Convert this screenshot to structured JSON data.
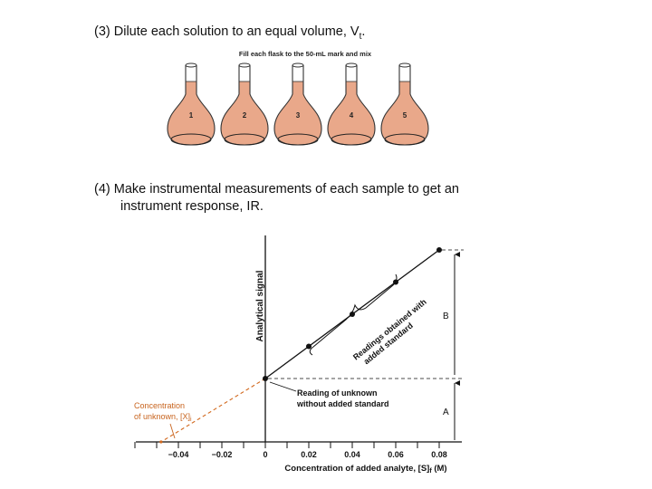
{
  "step3": {
    "prefix": "(3)  Dilute each solution to an equal volume, V",
    "subscript": "t",
    "suffix": "."
  },
  "flasks": {
    "instruction": "Fill each flask to the 50-mL mark and mix",
    "numbers": [
      "1",
      "2",
      "3",
      "4",
      "5"
    ],
    "liquid_color": "#e9a88a"
  },
  "step4": {
    "line1": "(4)  Make instrumental measurements of each sample to get an",
    "line2": "instrument response, IR."
  },
  "chart_data": {
    "type": "scatter",
    "title": "",
    "xlabel_main": "Concentration of added analyte, [S]",
    "xlabel_sub": "f",
    "xlabel_unit": " (M)",
    "ylabel": "Analytical signal",
    "xlim": [
      -0.06,
      0.085
    ],
    "x_ticks": [
      -0.04,
      -0.02,
      0,
      0.02,
      0.04,
      0.06,
      0.08
    ],
    "x_tick_labels": [
      "−0.04",
      "−0.02",
      "0",
      "0.02",
      "0.04",
      "0.06",
      "0.08"
    ],
    "series": [
      {
        "x": [
          0,
          0.02,
          0.04,
          0.06,
          0.08
        ],
        "y": [
          1.0,
          1.42,
          1.84,
          2.26,
          2.68
        ]
      }
    ],
    "extrapolated_x_intercept": -0.048,
    "annotations": {
      "readings_with_standard": "Readings obtained with added standard",
      "reading_unknown_line1": "Reading of unknown",
      "reading_unknown_line2": "without added standard",
      "conc_unknown_line1": "Concentration",
      "conc_unknown_line2": "of unknown, [X]",
      "conc_unknown_sub": "i",
      "label_A": "A",
      "label_B": "B"
    },
    "colors": {
      "data_line": "#111111",
      "extrapolation": "#d2691e",
      "unknown_label": "#c8641e"
    }
  }
}
